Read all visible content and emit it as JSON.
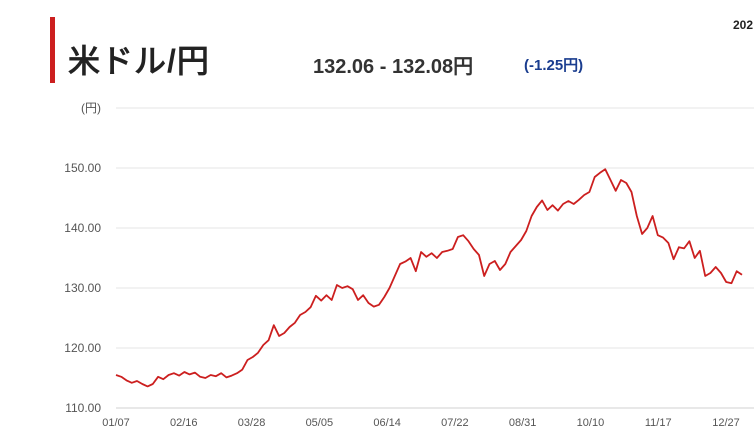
{
  "header": {
    "title": "米ドル/円",
    "quote": "132.06 - 132.08円",
    "change": "(-1.25円)",
    "corner_text": "202"
  },
  "colors": {
    "accent": "#cc1f1f",
    "line": "#cc1f1f",
    "change": "#1a3d8f",
    "grid": "#e6e6e6"
  },
  "chart_data": {
    "type": "line",
    "title": "",
    "xlabel": "",
    "ylabel": "(円)",
    "ylim": [
      110,
      160
    ],
    "y_ticks": [
      "110.00",
      "120.00",
      "130.00",
      "140.00",
      "150.00"
    ],
    "x_ticks": [
      "01/07",
      "02/16",
      "03/28",
      "05/05",
      "06/14",
      "07/22",
      "08/31",
      "10/10",
      "11/17",
      "12/27"
    ],
    "grid": true,
    "series": [
      {
        "values": [
          [
            0,
            115.5
          ],
          [
            2,
            115.2
          ],
          [
            4,
            114.6
          ],
          [
            6,
            114.2
          ],
          [
            8,
            114.5
          ],
          [
            10,
            114.0
          ],
          [
            12,
            113.6
          ],
          [
            14,
            114.0
          ],
          [
            16,
            115.2
          ],
          [
            18,
            114.8
          ],
          [
            20,
            115.5
          ],
          [
            22,
            115.8
          ],
          [
            24,
            115.4
          ],
          [
            26,
            116.0
          ],
          [
            28,
            115.6
          ],
          [
            30,
            115.9
          ],
          [
            32,
            115.2
          ],
          [
            34,
            115.0
          ],
          [
            36,
            115.5
          ],
          [
            38,
            115.3
          ],
          [
            40,
            115.8
          ],
          [
            42,
            115.1
          ],
          [
            44,
            115.4
          ],
          [
            46,
            115.8
          ],
          [
            48,
            116.4
          ],
          [
            50,
            118.0
          ],
          [
            52,
            118.5
          ],
          [
            54,
            119.2
          ],
          [
            56,
            120.5
          ],
          [
            58,
            121.3
          ],
          [
            60,
            123.8
          ],
          [
            62,
            122.0
          ],
          [
            64,
            122.5
          ],
          [
            66,
            123.5
          ],
          [
            68,
            124.2
          ],
          [
            70,
            125.5
          ],
          [
            72,
            126.0
          ],
          [
            74,
            126.8
          ],
          [
            76,
            128.7
          ],
          [
            78,
            127.9
          ],
          [
            80,
            128.8
          ],
          [
            82,
            128.0
          ],
          [
            84,
            130.5
          ],
          [
            86,
            130.0
          ],
          [
            88,
            130.3
          ],
          [
            90,
            129.8
          ],
          [
            92,
            128.0
          ],
          [
            94,
            128.8
          ],
          [
            96,
            127.5
          ],
          [
            98,
            126.9
          ],
          [
            100,
            127.2
          ],
          [
            102,
            128.5
          ],
          [
            104,
            130.0
          ],
          [
            106,
            132.0
          ],
          [
            108,
            134.0
          ],
          [
            110,
            134.4
          ],
          [
            112,
            135.0
          ],
          [
            114,
            132.8
          ],
          [
            116,
            136.0
          ],
          [
            118,
            135.2
          ],
          [
            120,
            135.8
          ],
          [
            122,
            135.0
          ],
          [
            124,
            136.0
          ],
          [
            126,
            136.2
          ],
          [
            128,
            136.5
          ],
          [
            130,
            138.5
          ],
          [
            132,
            138.8
          ],
          [
            134,
            137.8
          ],
          [
            136,
            136.5
          ],
          [
            138,
            135.5
          ],
          [
            140,
            132.0
          ],
          [
            142,
            134.0
          ],
          [
            144,
            134.5
          ],
          [
            146,
            133.0
          ],
          [
            148,
            134.0
          ],
          [
            150,
            136.0
          ],
          [
            152,
            137.0
          ],
          [
            154,
            138.0
          ],
          [
            156,
            139.5
          ],
          [
            158,
            142.0
          ],
          [
            160,
            143.5
          ],
          [
            162,
            144.6
          ],
          [
            164,
            143.0
          ],
          [
            166,
            143.8
          ],
          [
            168,
            142.9
          ],
          [
            170,
            144.0
          ],
          [
            172,
            144.5
          ],
          [
            174,
            144.0
          ],
          [
            176,
            144.7
          ],
          [
            178,
            145.5
          ],
          [
            180,
            146.0
          ],
          [
            182,
            148.5
          ],
          [
            184,
            149.2
          ],
          [
            186,
            149.8
          ],
          [
            188,
            148.0
          ],
          [
            190,
            146.2
          ],
          [
            192,
            148.0
          ],
          [
            194,
            147.5
          ],
          [
            196,
            146.0
          ],
          [
            198,
            142.0
          ],
          [
            200,
            139.0
          ],
          [
            202,
            140.0
          ],
          [
            204,
            142.0
          ],
          [
            206,
            138.8
          ],
          [
            208,
            138.4
          ],
          [
            210,
            137.5
          ],
          [
            212,
            134.8
          ],
          [
            214,
            136.8
          ],
          [
            216,
            136.6
          ],
          [
            218,
            137.8
          ],
          [
            220,
            135.0
          ],
          [
            222,
            136.2
          ],
          [
            224,
            132.0
          ],
          [
            226,
            132.5
          ],
          [
            228,
            133.5
          ],
          [
            230,
            132.5
          ],
          [
            232,
            131.0
          ],
          [
            234,
            130.8
          ],
          [
            236,
            132.8
          ],
          [
            238,
            132.2
          ]
        ]
      }
    ]
  }
}
